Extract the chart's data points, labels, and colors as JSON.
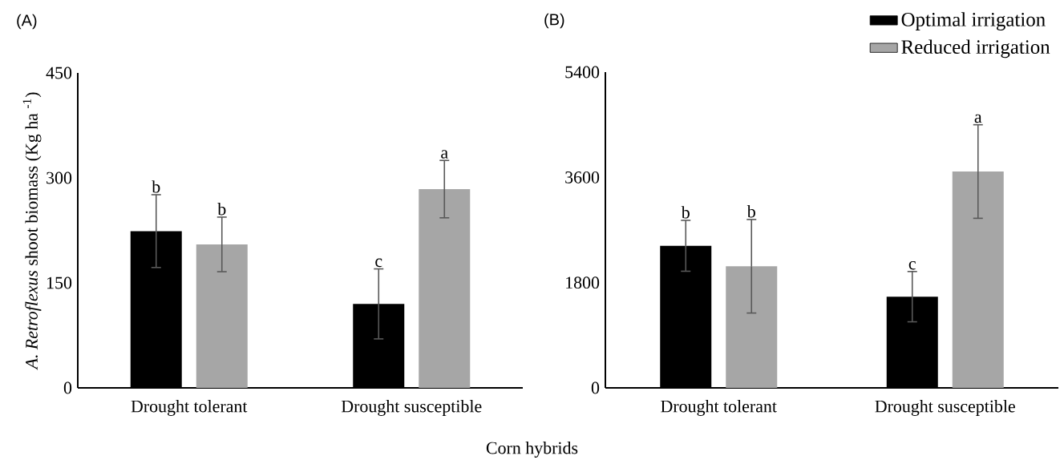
{
  "chart_data": [
    {
      "type": "bar",
      "title": "(A)",
      "ylabel": "*A. Retroflexus* shoot biomass (Kg ha $^{-1}$)",
      "xlabel": "Corn hybrids",
      "categories": [
        "Drought tolerant",
        "Drought susceptible"
      ],
      "series": [
        {
          "color": "#000000",
          "values": [
            224,
            120
          ],
          "errors": [
            52,
            50
          ]
        },
        {
          "color": "#a6a6a6",
          "values": [
            205,
            284
          ],
          "errors": [
            39,
            41
          ]
        }
      ],
      "ylim": [
        0,
        450
      ],
      "yticks": [
        0,
        150,
        300,
        450
      ],
      "annotations": [
        "b",
        "b",
        "c",
        "a"
      ]
    },
    {
      "type": "bar",
      "title": "(B)",
      "legend": "top right",
      "categories": [
        "Drought tolerant",
        "Drought susceptible"
      ],
      "series": [
        {
          "name": "Optimal irrigation",
          "color": "#000000",
          "values": [
            2430,
            1560
          ],
          "errors": [
            435,
            430
          ]
        },
        {
          "name": "Reduced irrigation",
          "color": "#a6a6a6",
          "values": [
            2080,
            3700
          ],
          "errors": [
            800,
            800
          ]
        }
      ],
      "ylim": [
        0,
        5400
      ],
      "yticks": [
        0,
        1800,
        3600,
        5400
      ],
      "annotations": [
        "b",
        "b",
        "c",
        "a"
      ]
    }
  ]
}
